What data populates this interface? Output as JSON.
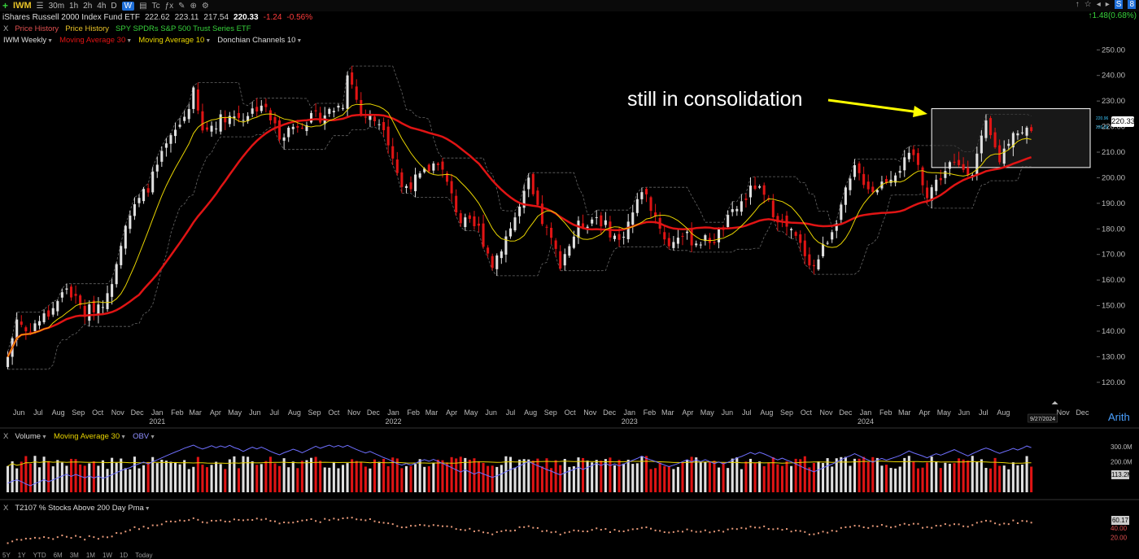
{
  "toolbar": {
    "symbol": "IWM",
    "timeframes": [
      "30m",
      "1h",
      "2h",
      "4h",
      "D",
      "W"
    ],
    "active_timeframe": "W",
    "extras": [
      "Tc",
      "ƒx"
    ],
    "right_icons": [
      "↑",
      "☆",
      "S",
      "8"
    ]
  },
  "quote": {
    "name": "iShares Russell 2000 Index Fund ETF",
    "open": "222.62",
    "high": "223.11",
    "low": "217.54",
    "last": "220.33",
    "change": "-1.24",
    "change_pct": "-0.56%",
    "day_change": "↑1.48(0.68%)"
  },
  "compare_row": {
    "x": "X",
    "items": [
      "Price History",
      "Price History",
      "SPY SPDRs S&P 500 Trust Series ETF"
    ]
  },
  "price_legend": {
    "items": [
      "IWM Weekly",
      "Moving Average 30",
      "Moving Average 10",
      "Donchian Channels 10"
    ]
  },
  "volume_legend": {
    "x": "X",
    "items": [
      "Volume",
      "Moving Average 30",
      "OBV"
    ]
  },
  "t2107_legend": {
    "x": "X",
    "items": [
      "T2107 % Stocks Above 200 Day Pma"
    ]
  },
  "annotation": "still in consolidation",
  "arith_label": "Arith",
  "price_badge": "220.33",
  "small_badges": [
    "220.96",
    "220.29"
  ],
  "volume_badge": "113.2M",
  "volume_axis": [
    "300.0M",
    "200.0M"
  ],
  "t2107_badge": "60.17",
  "t2107_axis": [
    "40.00",
    "20.00"
  ],
  "date_badge": "9/27/2024",
  "range_buttons": [
    "5Y",
    "1Y",
    "YTD",
    "6M",
    "3M",
    "1M",
    "1W",
    "1D",
    "Today"
  ],
  "colors": {
    "up": "#e0e0e0",
    "down": "#e01414",
    "ma30": "#e01414",
    "ma10": "#e8d400",
    "obv": "#6f6fff",
    "donchian": "#666666",
    "annot_arrow": "#ffff00"
  },
  "chart_data": {
    "type": "candlestick",
    "timeframe": "weekly",
    "ylim": [
      112,
      252
    ],
    "yticks": [
      120,
      130,
      140,
      150,
      160,
      170,
      180,
      190,
      200,
      210,
      220,
      230,
      240,
      250
    ],
    "x_labels": [
      {
        "date": "2020-06",
        "label": "Jun"
      },
      {
        "date": "2020-07",
        "label": "Jul"
      },
      {
        "date": "2020-08",
        "label": "Aug"
      },
      {
        "date": "2020-09",
        "label": "Sep"
      },
      {
        "date": "2020-10",
        "label": "Oct"
      },
      {
        "date": "2020-11",
        "label": "Nov"
      },
      {
        "date": "2020-12",
        "label": "Dec"
      },
      {
        "date": "2021-01",
        "label": "Jan",
        "year": "2021"
      },
      {
        "date": "2021-02",
        "label": "Feb"
      },
      {
        "date": "2021-03",
        "label": "Mar"
      },
      {
        "date": "2021-04",
        "label": "Apr"
      },
      {
        "date": "2021-05",
        "label": "May"
      },
      {
        "date": "2021-06",
        "label": "Jun"
      },
      {
        "date": "2021-07",
        "label": "Jul"
      },
      {
        "date": "2021-08",
        "label": "Aug"
      },
      {
        "date": "2021-09",
        "label": "Sep"
      },
      {
        "date": "2021-10",
        "label": "Oct"
      },
      {
        "date": "2021-11",
        "label": "Nov"
      },
      {
        "date": "2021-12",
        "label": "Dec"
      },
      {
        "date": "2022-01",
        "label": "Jan",
        "year": "2022"
      },
      {
        "date": "2022-02",
        "label": "Feb"
      },
      {
        "date": "2022-03",
        "label": "Mar"
      },
      {
        "date": "2022-04",
        "label": "Apr"
      },
      {
        "date": "2022-05",
        "label": "May"
      },
      {
        "date": "2022-06",
        "label": "Jun"
      },
      {
        "date": "2022-07",
        "label": "Jul"
      },
      {
        "date": "2022-08",
        "label": "Aug"
      },
      {
        "date": "2022-09",
        "label": "Sep"
      },
      {
        "date": "2022-10",
        "label": "Oct"
      },
      {
        "date": "2022-11",
        "label": "Nov"
      },
      {
        "date": "2022-12",
        "label": "Dec"
      },
      {
        "date": "2023-01",
        "label": "Jan",
        "year": "2023"
      },
      {
        "date": "2023-02",
        "label": "Feb"
      },
      {
        "date": "2023-03",
        "label": "Mar"
      },
      {
        "date": "2023-04",
        "label": "Apr"
      },
      {
        "date": "2023-05",
        "label": "May"
      },
      {
        "date": "2023-06",
        "label": "Jun"
      },
      {
        "date": "2023-07",
        "label": "Jul"
      },
      {
        "date": "2023-08",
        "label": "Aug"
      },
      {
        "date": "2023-09",
        "label": "Sep"
      },
      {
        "date": "2023-10",
        "label": "Oct"
      },
      {
        "date": "2023-11",
        "label": "Nov"
      },
      {
        "date": "2023-12",
        "label": "Dec"
      },
      {
        "date": "2024-01",
        "label": "Jan",
        "year": "2024"
      },
      {
        "date": "2024-02",
        "label": "Feb"
      },
      {
        "date": "2024-03",
        "label": "Mar"
      },
      {
        "date": "2024-04",
        "label": "Apr"
      },
      {
        "date": "2024-05",
        "label": "May"
      },
      {
        "date": "2024-06",
        "label": "Jun"
      },
      {
        "date": "2024-07",
        "label": "Jul"
      },
      {
        "date": "2024-08",
        "label": "Aug"
      },
      {
        "date": "2024-11",
        "label": "Nov"
      },
      {
        "date": "2024-12",
        "label": "Dec"
      }
    ],
    "close_anchors": [
      [
        "2020-05-29",
        130
      ],
      [
        "2020-06-12",
        145
      ],
      [
        "2020-06-26",
        140
      ],
      [
        "2020-07-31",
        147
      ],
      [
        "2020-08-28",
        157
      ],
      [
        "2020-09-25",
        147
      ],
      [
        "2020-10-30",
        153
      ],
      [
        "2020-11-27",
        183
      ],
      [
        "2020-12-31",
        196
      ],
      [
        "2021-01-29",
        212
      ],
      [
        "2021-02-26",
        224
      ],
      [
        "2021-03-12",
        233
      ],
      [
        "2021-03-26",
        218
      ],
      [
        "2021-04-30",
        224
      ],
      [
        "2021-05-28",
        224
      ],
      [
        "2021-06-25",
        229
      ],
      [
        "2021-07-23",
        217
      ],
      [
        "2021-08-27",
        222
      ],
      [
        "2021-09-24",
        224
      ],
      [
        "2021-10-29",
        229
      ],
      [
        "2021-11-05",
        242
      ],
      [
        "2021-11-26",
        225
      ],
      [
        "2021-12-31",
        221
      ],
      [
        "2022-01-28",
        196
      ],
      [
        "2022-02-25",
        200
      ],
      [
        "2022-03-25",
        207
      ],
      [
        "2022-04-29",
        183
      ],
      [
        "2022-05-27",
        180
      ],
      [
        "2022-06-17",
        166
      ],
      [
        "2022-07-29",
        188
      ],
      [
        "2022-08-12",
        198
      ],
      [
        "2022-08-26",
        187
      ],
      [
        "2022-09-30",
        167
      ],
      [
        "2022-10-28",
        181
      ],
      [
        "2022-11-25",
        185
      ],
      [
        "2022-12-30",
        175
      ],
      [
        "2023-01-27",
        190
      ],
      [
        "2023-02-03",
        196
      ],
      [
        "2023-02-24",
        185
      ],
      [
        "2023-03-17",
        173
      ],
      [
        "2023-03-31",
        178
      ],
      [
        "2023-04-28",
        175
      ],
      [
        "2023-05-26",
        176
      ],
      [
        "2023-06-30",
        188
      ],
      [
        "2023-07-28",
        197
      ],
      [
        "2023-08-25",
        187
      ],
      [
        "2023-09-29",
        176
      ],
      [
        "2023-10-27",
        165
      ],
      [
        "2023-11-24",
        180
      ],
      [
        "2023-12-29",
        203
      ],
      [
        "2024-01-26",
        195
      ],
      [
        "2024-02-23",
        201
      ],
      [
        "2024-03-29",
        209
      ],
      [
        "2024-04-19",
        194
      ],
      [
        "2024-05-24",
        205
      ],
      [
        "2024-06-28",
        203
      ],
      [
        "2024-07-19",
        220
      ],
      [
        "2024-08-09",
        207
      ],
      [
        "2024-08-30",
        219
      ],
      [
        "2024-09-13",
        217
      ],
      [
        "2024-09-27",
        220
      ]
    ],
    "series": [
      {
        "name": "Moving Average 30",
        "type": "line"
      },
      {
        "name": "Moving Average 10",
        "type": "line"
      },
      {
        "name": "Donchian Channels 10",
        "type": "band"
      }
    ],
    "consolidation_box": {
      "x_start": "2024-04-26",
      "x_end": "2024-12-27",
      "y_low": 204,
      "y_high": 227
    },
    "volume": {
      "ylim": [
        0,
        320
      ],
      "ticks": [
        300,
        200
      ],
      "unit": "M",
      "last": 113.2,
      "approx_level": 190
    },
    "t2107": {
      "ylim": [
        0,
        70
      ],
      "ticks": [
        40,
        20
      ],
      "last": 60.17
    }
  }
}
